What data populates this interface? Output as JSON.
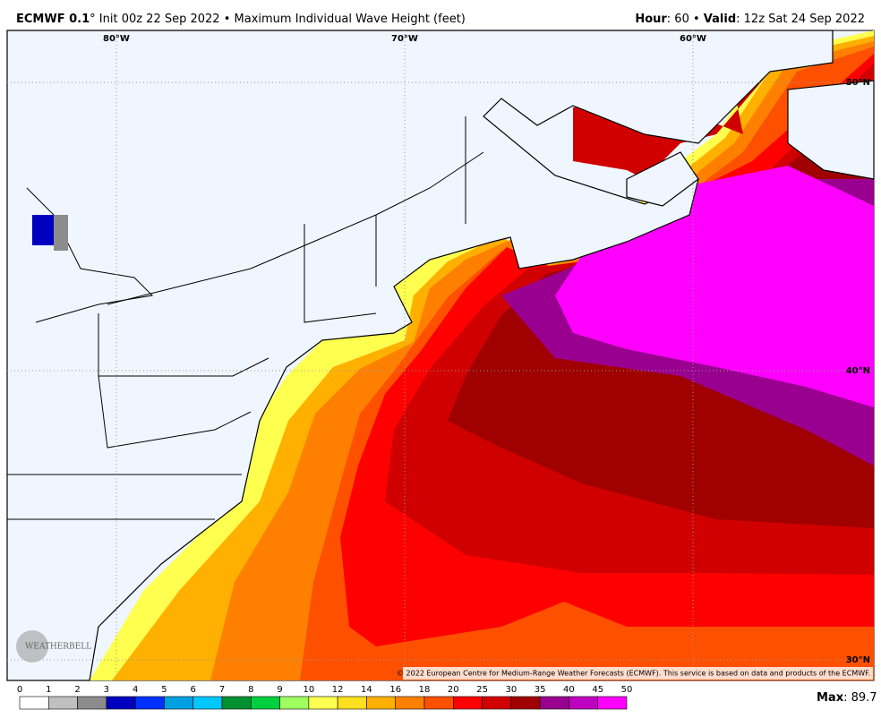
{
  "header": {
    "model": "ECMWF 0.1",
    "init": "° Init 00z 22 Sep 2022 • Maximum Individual Wave Height (feet)",
    "hour_label": "Hour",
    "hour": ": 60 • ",
    "valid_label": "Valid",
    "valid": ": 12z Sat 24 Sep 2022"
  },
  "map": {
    "lon_labels": [
      "80°W",
      "70°W",
      "60°W"
    ],
    "lat_labels": [
      "50°N",
      "40°N",
      "30°N"
    ],
    "credit": "© 2022 European Centre for Medium-Range Weather Forecasts (ECMWF). This service is based on data and products of the ECMWF.",
    "logo": "WEATHERBELL"
  },
  "colorbar": {
    "ticks": [
      0,
      1,
      2,
      3,
      4,
      5,
      6,
      7,
      8,
      9,
      10,
      12,
      14,
      16,
      18,
      20,
      25,
      30,
      35,
      40,
      45,
      50
    ],
    "colors": [
      "#ffffff",
      "#c0c0c0",
      "#8c8c8c",
      "#0000c0",
      "#0030ff",
      "#00a0e0",
      "#00c8ff",
      "#009030",
      "#00d040",
      "#a0ff60",
      "#ffff50",
      "#ffe020",
      "#ffb000",
      "#ff8000",
      "#ff5000",
      "#ff0000",
      "#d00000",
      "#a00000",
      "#9a0090",
      "#c000c0",
      "#ff00ff"
    ]
  },
  "max": {
    "label": "Max",
    "value": 89.7
  }
}
